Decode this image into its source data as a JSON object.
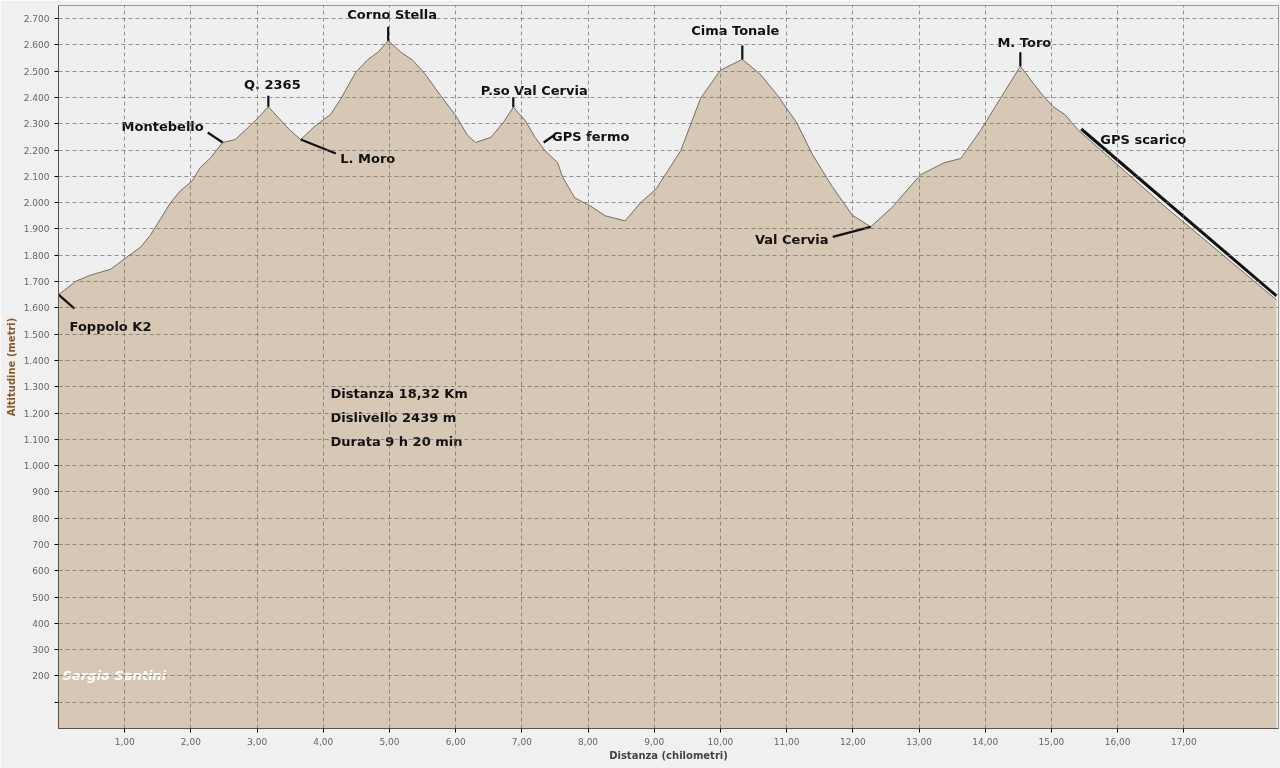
{
  "chart_data": {
    "type": "area",
    "xlabel": "Distanza (chilometri)",
    "ylabel": "Altitudine (metri)",
    "x": [
      0,
      0.09,
      0.26,
      0.48,
      0.79,
      1.01,
      1.24,
      1.39,
      1.54,
      1.69,
      1.84,
      2.02,
      2.14,
      2.3,
      2.48,
      2.67,
      2.82,
      3.02,
      3.17,
      3.5,
      3.66,
      3.85,
      4.11,
      4.26,
      4.49,
      4.68,
      4.83,
      4.98,
      5.17,
      5.35,
      5.54,
      5.77,
      6.0,
      6.18,
      6.3,
      6.53,
      6.72,
      6.87,
      7.05,
      7.2,
      7.35,
      7.54,
      7.62,
      7.8,
      8.03,
      8.26,
      8.56,
      8.79,
      9.03,
      9.4,
      9.7,
      10.0,
      10.33,
      10.6,
      10.85,
      11.15,
      11.39,
      11.69,
      11.99,
      12.27,
      12.6,
      13.02,
      13.38,
      13.63,
      13.93,
      14.23,
      14.53,
      14.83,
      15.02,
      15.2,
      15.41,
      16.65,
      18.4
    ],
    "series": [
      {
        "color": "#d6c8b4",
        "values": [
          1650,
          1667,
          1701,
          1724,
          1747,
          1789,
          1831,
          1877,
          1938,
          1999,
          2045,
          2083,
          2133,
          2171,
          2229,
          2240,
          2275,
          2324,
          2365,
          2275,
          2240,
          2286,
          2336,
          2393,
          2496,
          2546,
          2573,
          2616,
          2573,
          2542,
          2489,
          2408,
          2332,
          2256,
          2229,
          2248,
          2305,
          2363,
          2313,
          2248,
          2198,
          2152,
          2095,
          2018,
          1988,
          1950,
          1931,
          1999,
          2053,
          2198,
          2397,
          2504,
          2545,
          2489,
          2412,
          2305,
          2183,
          2061,
          1953,
          1908,
          1984,
          2106,
          2152,
          2168,
          2275,
          2397,
          2519,
          2420,
          2366,
          2336,
          2275,
          1999,
          1630
        ]
      }
    ],
    "xlim": [
      0,
      18.43
    ],
    "ylim": [
      0,
      2750
    ],
    "xticks": [
      {
        "value": 1,
        "label": "1,00"
      },
      {
        "value": 2,
        "label": "2,00"
      },
      {
        "value": 3,
        "label": "3,00"
      },
      {
        "value": 4,
        "label": "4,00"
      },
      {
        "value": 5,
        "label": "5,00"
      },
      {
        "value": 6,
        "label": "6,00"
      },
      {
        "value": 7,
        "label": "7,00"
      },
      {
        "value": 8,
        "label": "8,00"
      },
      {
        "value": 9,
        "label": "9,00"
      },
      {
        "value": 10,
        "label": "10,00"
      },
      {
        "value": 11,
        "label": "11,00"
      },
      {
        "value": 12,
        "label": "12,00"
      },
      {
        "value": 13,
        "label": "13,00"
      },
      {
        "value": 14,
        "label": "14,00"
      },
      {
        "value": 15,
        "label": "15,00"
      },
      {
        "value": 16,
        "label": "16,00"
      },
      {
        "value": 17,
        "label": "17,00"
      }
    ],
    "yticks": [
      {
        "value": 100,
        "label": null
      },
      200,
      300,
      400,
      500,
      600,
      700,
      800,
      900,
      {
        "value": 1000,
        "label": "1.000"
      },
      {
        "value": 1100,
        "label": "1.100"
      },
      {
        "value": 1200,
        "label": "1.200"
      },
      {
        "value": 1300,
        "label": "1.300"
      },
      {
        "value": 1400,
        "label": "1.400"
      },
      {
        "value": 1500,
        "label": "1.500"
      },
      {
        "value": 1600,
        "label": "1.600"
      },
      {
        "value": 1700,
        "label": "1.700"
      },
      {
        "value": 1800,
        "label": "1.800"
      },
      {
        "value": 1900,
        "label": "1.900"
      },
      {
        "value": 2000,
        "label": "2.000"
      },
      {
        "value": 2100,
        "label": "2.100"
      },
      {
        "value": 2200,
        "label": "2.200"
      },
      {
        "value": 2300,
        "label": "2.300"
      },
      {
        "value": 2400,
        "label": "2.400"
      },
      {
        "value": 2500,
        "label": "2.500"
      },
      {
        "value": 2600,
        "label": "2.600"
      },
      {
        "value": 2700,
        "label": "2.700"
      }
    ],
    "grid": true,
    "annotations": [
      {
        "text": "Foppolo K2",
        "x": 0,
        "y": 1650
      },
      {
        "text": "Montebello",
        "x": 2.48,
        "y": 2229
      },
      {
        "text": "Q. 2365",
        "x": 3.17,
        "y": 2365
      },
      {
        "text": "Corno Stella",
        "x": 4.98,
        "y": 2616
      },
      {
        "text": "L. Moro",
        "x": 3.66,
        "y": 2240
      },
      {
        "text": "P.so Val Cervia",
        "x": 6.87,
        "y": 2363
      },
      {
        "text": "GPS fermo",
        "x": 7.33,
        "y": 2229
      },
      {
        "text": "Cima Tonale",
        "x": 10.33,
        "y": 2545
      },
      {
        "text": "Val Cervia",
        "x": 12.27,
        "y": 1908
      },
      {
        "text": "M. Toro",
        "x": 14.53,
        "y": 2519
      },
      {
        "text": "GPS scarico",
        "x": 15.45,
        "y": 2265
      },
      "Distanza   18,32 Km",
      "Dislivello   2439 m",
      "Durata 9 h 20 min",
      "Sergio Santini"
    ]
  }
}
